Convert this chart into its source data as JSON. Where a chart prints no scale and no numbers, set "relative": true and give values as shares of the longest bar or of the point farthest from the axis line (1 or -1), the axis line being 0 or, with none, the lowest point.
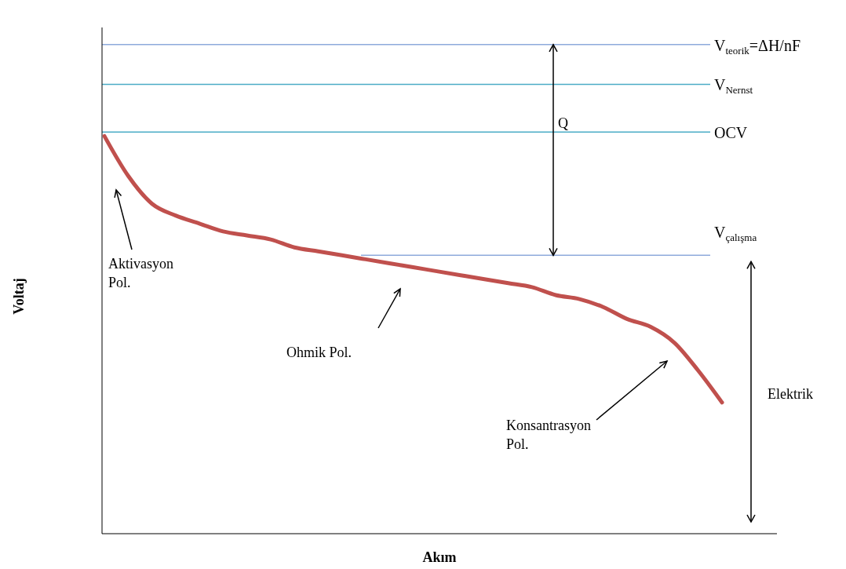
{
  "chart_data": {
    "type": "line",
    "relative": true,
    "xlabel": "Akım",
    "ylabel": "Voltaj",
    "categories": [
      null,
      null,
      null,
      null,
      null,
      null,
      null,
      null,
      null,
      null,
      null,
      null,
      null,
      null,
      null,
      null,
      null,
      null,
      null,
      null,
      null,
      null,
      null,
      null,
      null,
      null,
      null
    ],
    "series": [
      {
        "color": "#c0504d",
        "values": [
          1.0,
          0.9,
          0.83,
          0.8,
          0.78,
          0.76,
          0.75,
          0.74,
          0.72,
          0.71,
          0.7,
          0.69,
          0.68,
          0.67,
          0.66,
          0.65,
          0.64,
          0.63,
          0.62,
          0.6,
          0.59,
          0.57,
          0.54,
          0.52,
          0.48,
          0.41,
          0.33
        ]
      }
    ],
    "ref_lines": [
      {
        "axis": "y",
        "value": 1.23,
        "label": "V$_{teorik}$=ΔH/nF",
        "color": "#8eaadb"
      },
      {
        "axis": "y",
        "value": 1.13,
        "label": "V$_{Nernst}$",
        "color": "#4bacc6"
      },
      {
        "axis": "y",
        "value": 1.01,
        "label": "OCV",
        "color": "#4bacc6"
      },
      {
        "axis": "y",
        "value": 0.7,
        "label": "V$_{çalışma}$",
        "color": "#8eaadb"
      }
    ],
    "annotations": [
      "Q",
      "Elektrik",
      "Aktivasyon Pol.",
      "Ohmik Pol.",
      "Konsantrasyon Pol."
    ],
    "marker": "none",
    "line_style": "solid"
  }
}
